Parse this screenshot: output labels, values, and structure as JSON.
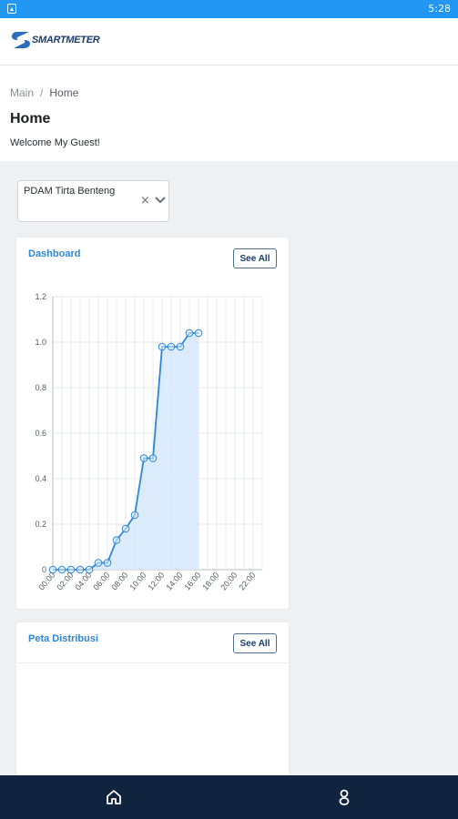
{
  "status_bar": {
    "time": "5:28",
    "color": "#2196f3"
  },
  "app": {
    "logo_text": "SMARTMETER",
    "brand_color": "#1c3d6e",
    "accent": "#2e86d8"
  },
  "breadcrumb": {
    "root": "Main",
    "separator": "/",
    "current": "Home"
  },
  "page": {
    "title": "Home",
    "welcome": "Welcome My Guest!"
  },
  "select": {
    "value": "PDAM Tirta Benteng"
  },
  "dashboard_card": {
    "title": "Dashboard",
    "see_all": "See All"
  },
  "map_card": {
    "title": "Peta Distribusi",
    "see_all": "See All"
  },
  "bottom_nav": {
    "items": [
      {
        "icon": "home-icon"
      },
      {
        "icon": "user-icon"
      }
    ],
    "color": "#10243f"
  },
  "chart_data": {
    "type": "area",
    "x": [
      "00:00",
      "01:00",
      "02:00",
      "03:00",
      "04:00",
      "05:00",
      "06:00",
      "07:00",
      "08:00",
      "09:00",
      "10:00",
      "11:00",
      "12:00",
      "13:00",
      "14:00",
      "15:00",
      "16:00"
    ],
    "y": [
      0,
      0,
      0,
      0,
      0,
      0.03,
      0.03,
      0.13,
      0.18,
      0.24,
      0.49,
      0.49,
      0.98,
      0.98,
      0.98,
      1.04,
      1.04
    ],
    "x_tick_labels": [
      "00:00",
      "02:00",
      "04:00",
      "06:00",
      "08:00",
      "10:00",
      "12:00",
      "14:00",
      "16:00",
      "18:00",
      "20:00",
      "22:00"
    ],
    "y_tick_labels": [
      "0",
      "0.2",
      "0.4",
      "0.6",
      "0.8",
      "1.0",
      "1.2"
    ],
    "ylim": [
      0,
      1.2
    ],
    "xlim_hours": [
      0,
      23
    ],
    "grid": true,
    "color": "#2e86d8",
    "fill_color": "#d6e9fb"
  }
}
